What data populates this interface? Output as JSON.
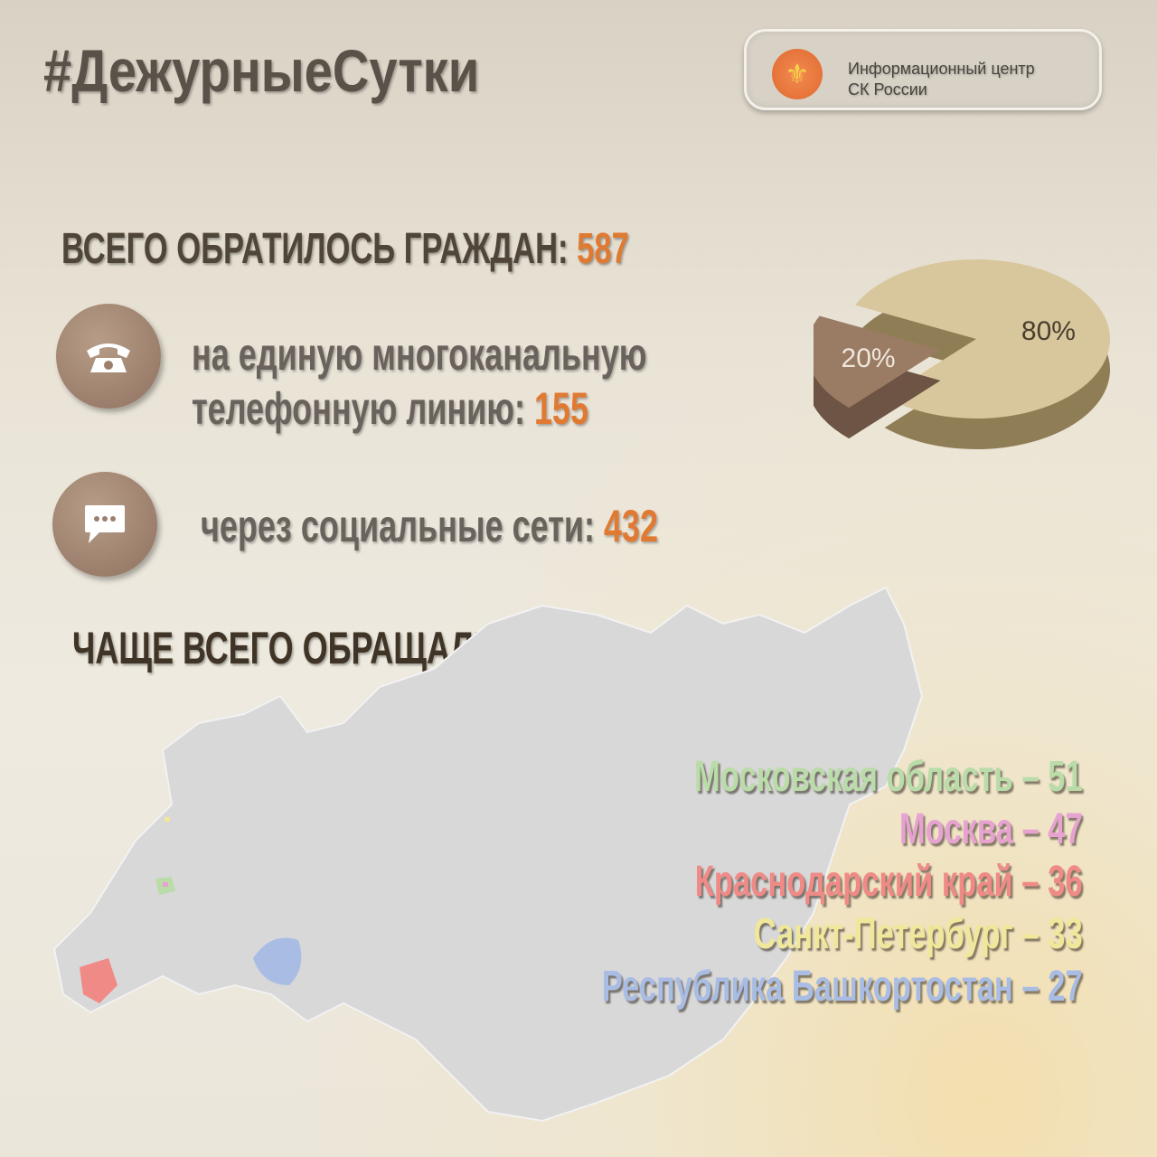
{
  "header": {
    "hashtag": "#ДежурныеСутки",
    "badge_line1": "Информационный центр",
    "badge_line2": "СК России",
    "logo_icon": "sk-emblem-icon"
  },
  "total": {
    "label": "ВСЕГО ОБРАТИЛОСЬ ГРАЖДАН: ",
    "value": "587"
  },
  "phone": {
    "icon": "phone-icon",
    "line1": "на единую многоканальную",
    "line2": "телефонную линию: ",
    "value": "155"
  },
  "social": {
    "icon": "chat-bubble-icon",
    "label": "через социальные сети: ",
    "value": "432"
  },
  "regions_title": "ЧАЩЕ ВСЕГО ОБРАЩАЛИСЬ ИЗ РЕГИОНОВ:",
  "regions": [
    {
      "label": "Московская область – 51",
      "color": "#b9dca8"
    },
    {
      "label": "Москва – 47",
      "color": "#e7a3d0"
    },
    {
      "label": "Краснодарский край – 36",
      "color": "#f08a86"
    },
    {
      "label": "Санкт-Петербург  – 33",
      "color": "#f1e79a"
    },
    {
      "label": "Республика Башкортостан – 27",
      "color": "#a9bde4"
    }
  ],
  "chart_data": {
    "type": "pie",
    "slices": [
      {
        "label": "80%",
        "value": 80,
        "color": "#d8c79c"
      },
      {
        "label": "20%",
        "value": 20,
        "color": "#9a7b63"
      }
    ]
  },
  "accent": "#e07a32"
}
